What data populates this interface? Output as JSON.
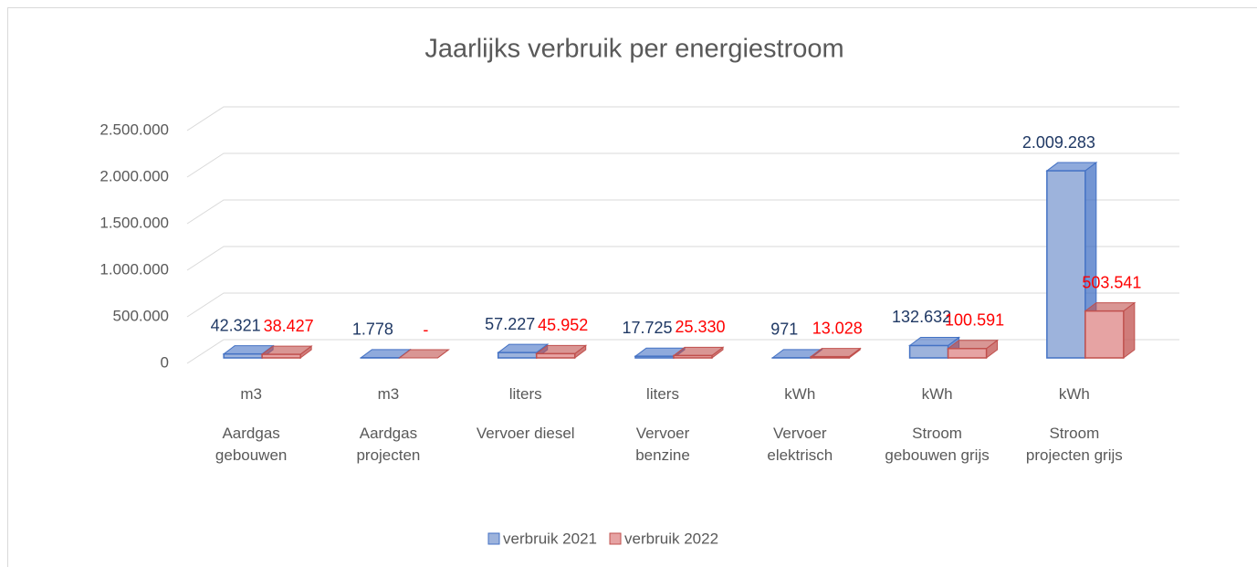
{
  "chart_data": {
    "type": "bar3d",
    "title": "Jaarlijks verbruik per energiestroom",
    "categories": [
      "Aardgas gebouwen",
      "Aardgas projecten",
      "Vervoer diesel",
      "Vervoer benzine",
      "Vervoer elektrisch",
      "Stroom gebouwen grijs",
      "Stroom projecten grijs"
    ],
    "units": [
      "m3",
      "m3",
      "liters",
      "liters",
      "kWh",
      "kWh",
      "kWh"
    ],
    "series": [
      {
        "name": "verbruik 2021",
        "color": "#9db3dc",
        "edge": "#4472c4",
        "label_color": "#1f3864",
        "values": [
          42321,
          1778,
          57227,
          17725,
          971,
          132632,
          2009283
        ],
        "value_labels": [
          "42.321",
          "1.778",
          "57.227",
          "17.725",
          "971",
          "132.632",
          "2.009.283"
        ]
      },
      {
        "name": "verbruik 2022",
        "color": "#e6a3a3",
        "edge": "#c0504d",
        "label_color": "#ff0000",
        "values": [
          38427,
          0,
          45952,
          25330,
          13028,
          100591,
          503541
        ],
        "value_labels": [
          "38.427",
          "-",
          "45.952",
          "25.330",
          "13.028",
          "100.591",
          "503.541"
        ]
      }
    ],
    "ylim": [
      0,
      2500000
    ],
    "yticks": [
      0,
      {
        "value": 500000,
        "label": "500.000"
      },
      {
        "value": 1000000,
        "label": "1.000.000"
      },
      {
        "value": 1500000,
        "label": "1.500.000"
      },
      {
        "value": 2000000,
        "label": "2.000.000"
      },
      {
        "value": 2500000,
        "label": "2.500.000"
      }
    ],
    "grid": true,
    "legend": "bottom"
  }
}
